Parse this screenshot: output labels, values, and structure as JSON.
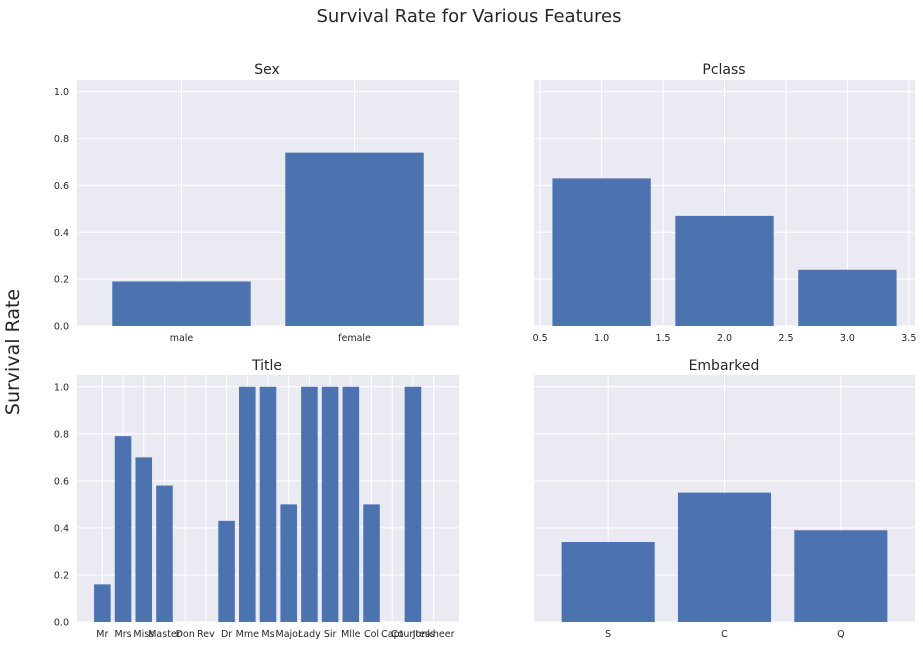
{
  "figure": {
    "suptitle": "Survival Rate for Various Features",
    "ylabel": "Survival Rate"
  },
  "colors": {
    "bar": "#4c72b0",
    "axes_bg": "#eaeaf2",
    "grid": "#ffffff",
    "text": "#262626"
  },
  "chart_data": [
    {
      "type": "bar",
      "title": "Sex",
      "categories": [
        "male",
        "female"
      ],
      "values": [
        0.19,
        0.74
      ],
      "ylim": [
        0,
        1.05
      ],
      "yticks": [
        "0.0",
        "0.2",
        "0.4",
        "0.6",
        "0.8",
        "1.0"
      ],
      "grid": true
    },
    {
      "type": "bar",
      "title": "Pclass",
      "x": [
        1,
        2,
        3
      ],
      "values": [
        0.63,
        0.47,
        0.24
      ],
      "xlim": [
        0.45,
        3.55
      ],
      "xticks": [
        "0.5",
        "1.0",
        "1.5",
        "2.0",
        "2.5",
        "3.0",
        "3.5"
      ],
      "ylim": [
        0,
        1.05
      ],
      "grid": true
    },
    {
      "type": "bar",
      "title": "Title",
      "categories": [
        "Mr",
        "Mrs",
        "Miss",
        "Master",
        "Don",
        "Rev",
        "Dr",
        "Mme",
        "Ms",
        "Major",
        "Lady",
        "Sir",
        "Mlle",
        "Col",
        "Capt",
        "Countess",
        "Jonkheer"
      ],
      "values": [
        0.16,
        0.79,
        0.7,
        0.58,
        0.0,
        0.0,
        0.43,
        1.0,
        1.0,
        0.5,
        1.0,
        1.0,
        1.0,
        0.5,
        0.0,
        1.0,
        0.0
      ],
      "ylim": [
        0,
        1.05
      ],
      "yticks": [
        "0.0",
        "0.2",
        "0.4",
        "0.6",
        "0.8",
        "1.0"
      ],
      "grid": true
    },
    {
      "type": "bar",
      "title": "Embarked",
      "categories": [
        "S",
        "C",
        "Q"
      ],
      "values": [
        0.34,
        0.55,
        0.39
      ],
      "ylim": [
        0,
        1.05
      ],
      "grid": true
    }
  ]
}
